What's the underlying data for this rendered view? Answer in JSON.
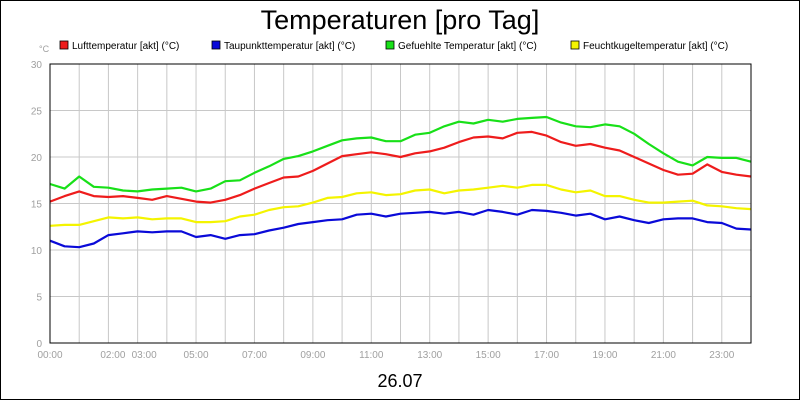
{
  "chart_data": {
    "type": "line",
    "title": "Temperaturen [pro Tag]",
    "xlabel": "26.07",
    "ylabel": "°C",
    "ylim": [
      0,
      30
    ],
    "yticks": [
      0,
      5,
      10,
      15,
      20,
      25,
      30
    ],
    "x_tick_labels": [
      "00:00",
      "02:00",
      "03:00",
      "05:00",
      "07:00",
      "09:00",
      "11:00",
      "13:00",
      "15:00",
      "17:00",
      "19:00",
      "21:00",
      "23:00"
    ],
    "x_tick_hours": [
      0,
      2,
      3,
      5,
      7,
      9,
      11,
      13,
      15,
      17,
      19,
      21,
      23
    ],
    "xlim": [
      0,
      24
    ],
    "grid": true,
    "legend_position": "top",
    "x": [
      0,
      0.5,
      1,
      1.5,
      2,
      2.5,
      3,
      3.5,
      4,
      4.5,
      5,
      5.5,
      6,
      6.5,
      7,
      7.5,
      8,
      8.5,
      9,
      9.5,
      10,
      10.5,
      11,
      11.5,
      12,
      12.5,
      13,
      13.5,
      14,
      14.5,
      15,
      15.5,
      16,
      16.5,
      17,
      17.5,
      18,
      18.5,
      19,
      19.5,
      20,
      20.5,
      21,
      21.5,
      22,
      22.5,
      23,
      23.5,
      24
    ],
    "series": [
      {
        "name": "Lufttemperatur [akt] (°C)",
        "color": "#ee1c1c",
        "values": [
          15.2,
          15.8,
          16.3,
          15.8,
          15.7,
          15.8,
          15.6,
          15.4,
          15.8,
          15.5,
          15.2,
          15.1,
          15.4,
          15.9,
          16.6,
          17.2,
          17.8,
          17.9,
          18.5,
          19.3,
          20.1,
          20.3,
          20.5,
          20.3,
          20.0,
          20.4,
          20.6,
          21.0,
          21.6,
          22.1,
          22.2,
          22.0,
          22.6,
          22.7,
          22.3,
          21.6,
          21.2,
          21.4,
          21.0,
          20.7,
          20.0,
          19.3,
          18.6,
          18.1,
          18.2,
          19.2,
          18.4,
          18.1,
          17.9
        ]
      },
      {
        "name": "Taupunkttemperatur [akt] (°C)",
        "color": "#0a0ad8",
        "values": [
          11.0,
          10.4,
          10.3,
          10.7,
          11.6,
          11.8,
          12.0,
          11.9,
          12.0,
          12.0,
          11.4,
          11.6,
          11.2,
          11.6,
          11.7,
          12.1,
          12.4,
          12.8,
          13.0,
          13.2,
          13.3,
          13.8,
          13.9,
          13.6,
          13.9,
          14.0,
          14.1,
          13.9,
          14.1,
          13.8,
          14.3,
          14.1,
          13.8,
          14.3,
          14.2,
          14.0,
          13.7,
          13.9,
          13.3,
          13.6,
          13.2,
          12.9,
          13.3,
          13.4,
          13.4,
          13.0,
          12.9,
          12.3,
          12.2
        ]
      },
      {
        "name": "Gefuehlte Temperatur [akt] (°C)",
        "color": "#18e018",
        "values": [
          17.1,
          16.6,
          17.9,
          16.8,
          16.7,
          16.4,
          16.3,
          16.5,
          16.6,
          16.7,
          16.3,
          16.6,
          17.4,
          17.5,
          18.3,
          19.0,
          19.8,
          20.1,
          20.6,
          21.2,
          21.8,
          22.0,
          22.1,
          21.7,
          21.7,
          22.4,
          22.6,
          23.3,
          23.8,
          23.6,
          24.0,
          23.8,
          24.1,
          24.2,
          24.3,
          23.7,
          23.3,
          23.2,
          23.5,
          23.3,
          22.5,
          21.4,
          20.4,
          19.5,
          19.1,
          20.0,
          19.9,
          19.9,
          19.5
        ]
      },
      {
        "name": "Feuchtkugeltemperatur [akt] (°C)",
        "color": "#f4f400",
        "values": [
          12.6,
          12.7,
          12.7,
          13.1,
          13.5,
          13.4,
          13.5,
          13.3,
          13.4,
          13.4,
          13.0,
          13.0,
          13.1,
          13.6,
          13.8,
          14.3,
          14.6,
          14.7,
          15.1,
          15.6,
          15.7,
          16.1,
          16.2,
          15.9,
          16.0,
          16.4,
          16.5,
          16.1,
          16.4,
          16.5,
          16.7,
          16.9,
          16.7,
          17.0,
          17.0,
          16.5,
          16.2,
          16.4,
          15.8,
          15.8,
          15.4,
          15.1,
          15.1,
          15.2,
          15.3,
          14.8,
          14.7,
          14.5,
          14.4
        ]
      }
    ]
  }
}
